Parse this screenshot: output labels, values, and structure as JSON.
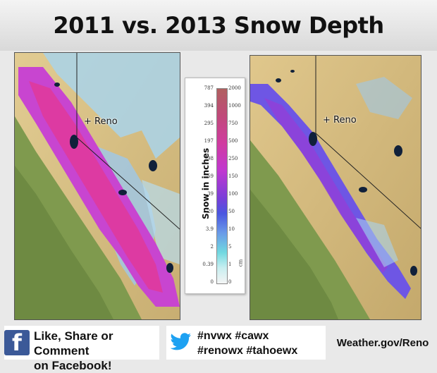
{
  "title": "2011 vs. 2013 Snow Depth",
  "maps": {
    "left": {
      "city_label": "+ Reno"
    },
    "right": {
      "city_label": "+ Reno"
    }
  },
  "legend": {
    "axis_label": "Snow in inches",
    "unit_label": "cm",
    "inch_ticks": [
      "787",
      "394",
      "295",
      "197",
      "98",
      "59",
      "39",
      "20",
      "3.9",
      "2",
      "0.39",
      "0"
    ],
    "cm_ticks": [
      "2000",
      "1000",
      "750",
      "500",
      "250",
      "150",
      "100",
      "50",
      "10",
      "5",
      "1",
      "0"
    ]
  },
  "footer": {
    "facebook": {
      "line1": "Like, Share or Comment",
      "line2": "on Facebook!",
      "icon": "f"
    },
    "twitter": {
      "line1": "#nvwx #cawx",
      "line2": "#renowx #tahoewx"
    },
    "website": "Weather.gov/Reno"
  },
  "colors": {
    "terrain": "#d8c38a",
    "valley": "#7f9a4e",
    "snow_deep": "#d23cc8",
    "snow_mid": "#7a48e0",
    "snow_light": "#a8d8ec",
    "lake": "#10203a",
    "facebook": "#3b5998",
    "twitter": "#1da1f2"
  }
}
